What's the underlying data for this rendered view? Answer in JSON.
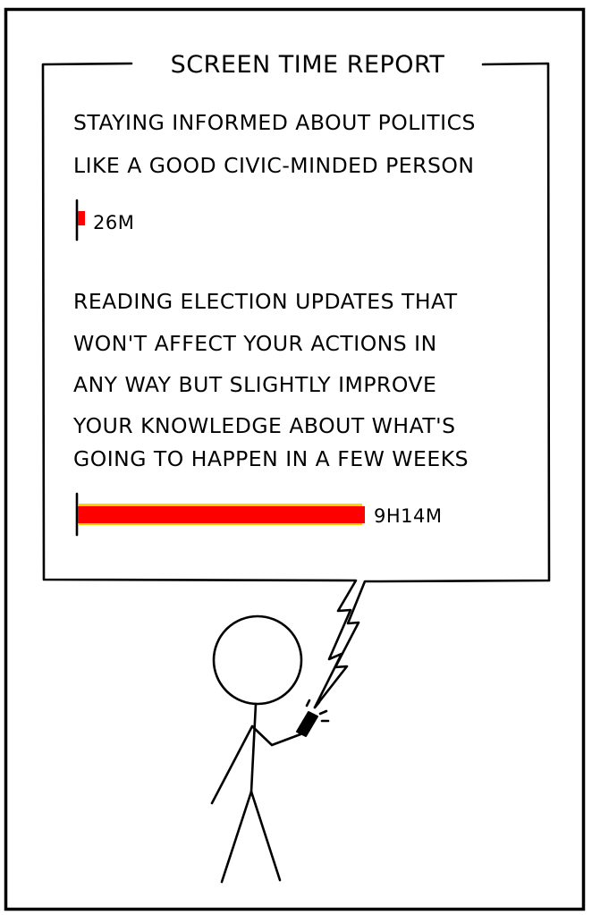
{
  "panel": {
    "title": "SCREEN TIME REPORT"
  },
  "report": {
    "items": [
      {
        "label_lines": [
          "STAYING INFORMED ABOUT POLITICS",
          "LIKE A GOOD CIVIC-MINDED PERSON"
        ],
        "value_text": "26M",
        "minutes": 26
      },
      {
        "label_lines": [
          "READING ELECTION UPDATES THAT",
          "WON'T AFFECT YOUR ACTIONS IN",
          "ANY WAY BUT SLIGHTLY IMPROVE",
          "YOUR KNOWLEDGE ABOUT WHAT'S",
          "GOING TO HAPPEN IN A FEW WEEKS"
        ],
        "value_text": "9H14M",
        "minutes": 554
      }
    ]
  },
  "colors": {
    "bar_fill": "#ff0000",
    "bar_highlight": "#ffd200",
    "ink": "#000000",
    "background": "#ffffff"
  },
  "illustration": {
    "figure": "stick-figure-holding-phone-icon"
  }
}
